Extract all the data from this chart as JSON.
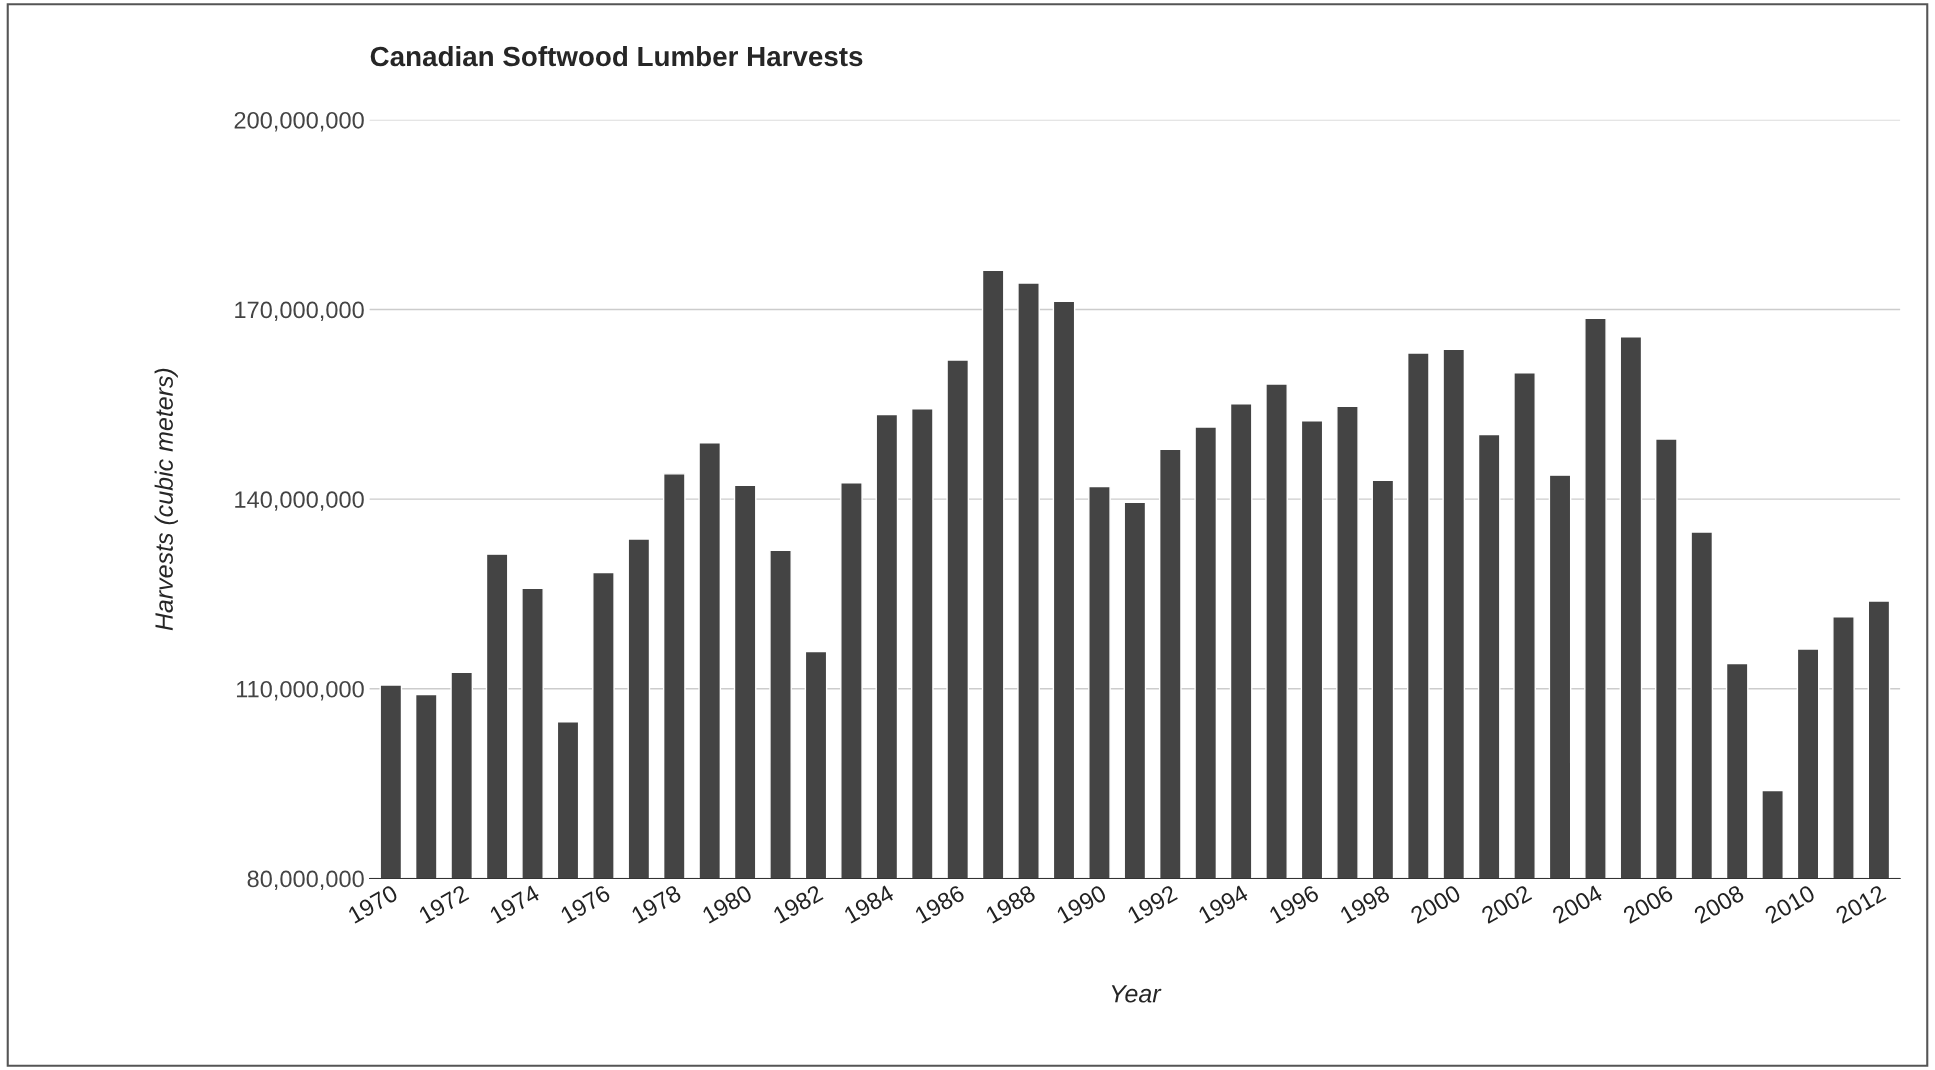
{
  "chart_data": {
    "type": "bar",
    "title": "Canadian Softwood Lumber Harvests",
    "xlabel": "Year",
    "ylabel": "Harvests (cubic meters)",
    "categories": [
      "1970",
      null,
      "1972",
      null,
      "1974",
      null,
      "1976",
      null,
      "1978",
      null,
      "1980",
      null,
      "1982",
      null,
      "1984",
      null,
      "1986",
      null,
      "1988",
      null,
      "1990",
      null,
      "1992",
      null,
      "1994",
      null,
      "1996",
      null,
      "1998",
      null,
      "2000",
      null,
      "2002",
      null,
      "2004",
      null,
      "2006",
      null,
      "2008",
      null,
      "2010",
      null,
      "2012"
    ],
    "values": [
      110600000,
      109100000,
      112600000,
      131300000,
      125900000,
      104800000,
      128400000,
      133700000,
      144000000,
      148900000,
      142200000,
      131900000,
      115900000,
      142600000,
      153400000,
      154300000,
      162000000,
      176200000,
      174200000,
      171300000,
      142000000,
      139500000,
      147900000,
      151400000,
      155100000,
      158200000,
      152400000,
      154700000,
      143000000,
      163100000,
      163700000,
      150200000,
      160000000,
      143800000,
      168600000,
      165700000,
      149500000,
      134800000,
      114000000,
      93900000,
      116300000,
      121400000,
      123900000
    ],
    "color": "#444444",
    "ylim": [
      80000000,
      200000000
    ],
    "yticks": [
      {
        "value": 80000000,
        "label": "80,000,000"
      },
      {
        "value": 110000000,
        "label": "110,000,000"
      },
      {
        "value": 140000000,
        "label": "140,000,000"
      },
      {
        "value": 170000000,
        "label": "170,000,000"
      },
      {
        "value": 200000000,
        "label": "200,000,000"
      }
    ],
    "grid": "y",
    "legend": false
  }
}
